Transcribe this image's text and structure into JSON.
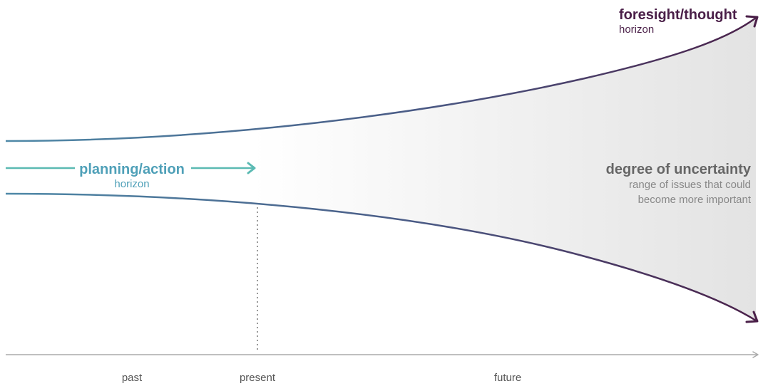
{
  "foresight": {
    "title": "foresight/thought",
    "subtitle": "horizon"
  },
  "planning": {
    "title": "planning/action",
    "subtitle": "horizon"
  },
  "uncertainty": {
    "title": "degree of uncertainty",
    "line1": "range of issues that could",
    "line2": "become more important"
  },
  "timeline": {
    "past": "past",
    "present": "present",
    "future": "future"
  },
  "colors": {
    "foresight": "#4a1f48",
    "planning": "#5bbab3",
    "planning_text": "#4fa0b8",
    "curve_start": "#4f8aa8",
    "curve_end": "#4a1f48",
    "uncertainty_title": "#666666",
    "uncertainty_text": "#888888",
    "axis": "#aaaaaa",
    "present_marker": "#999999"
  }
}
